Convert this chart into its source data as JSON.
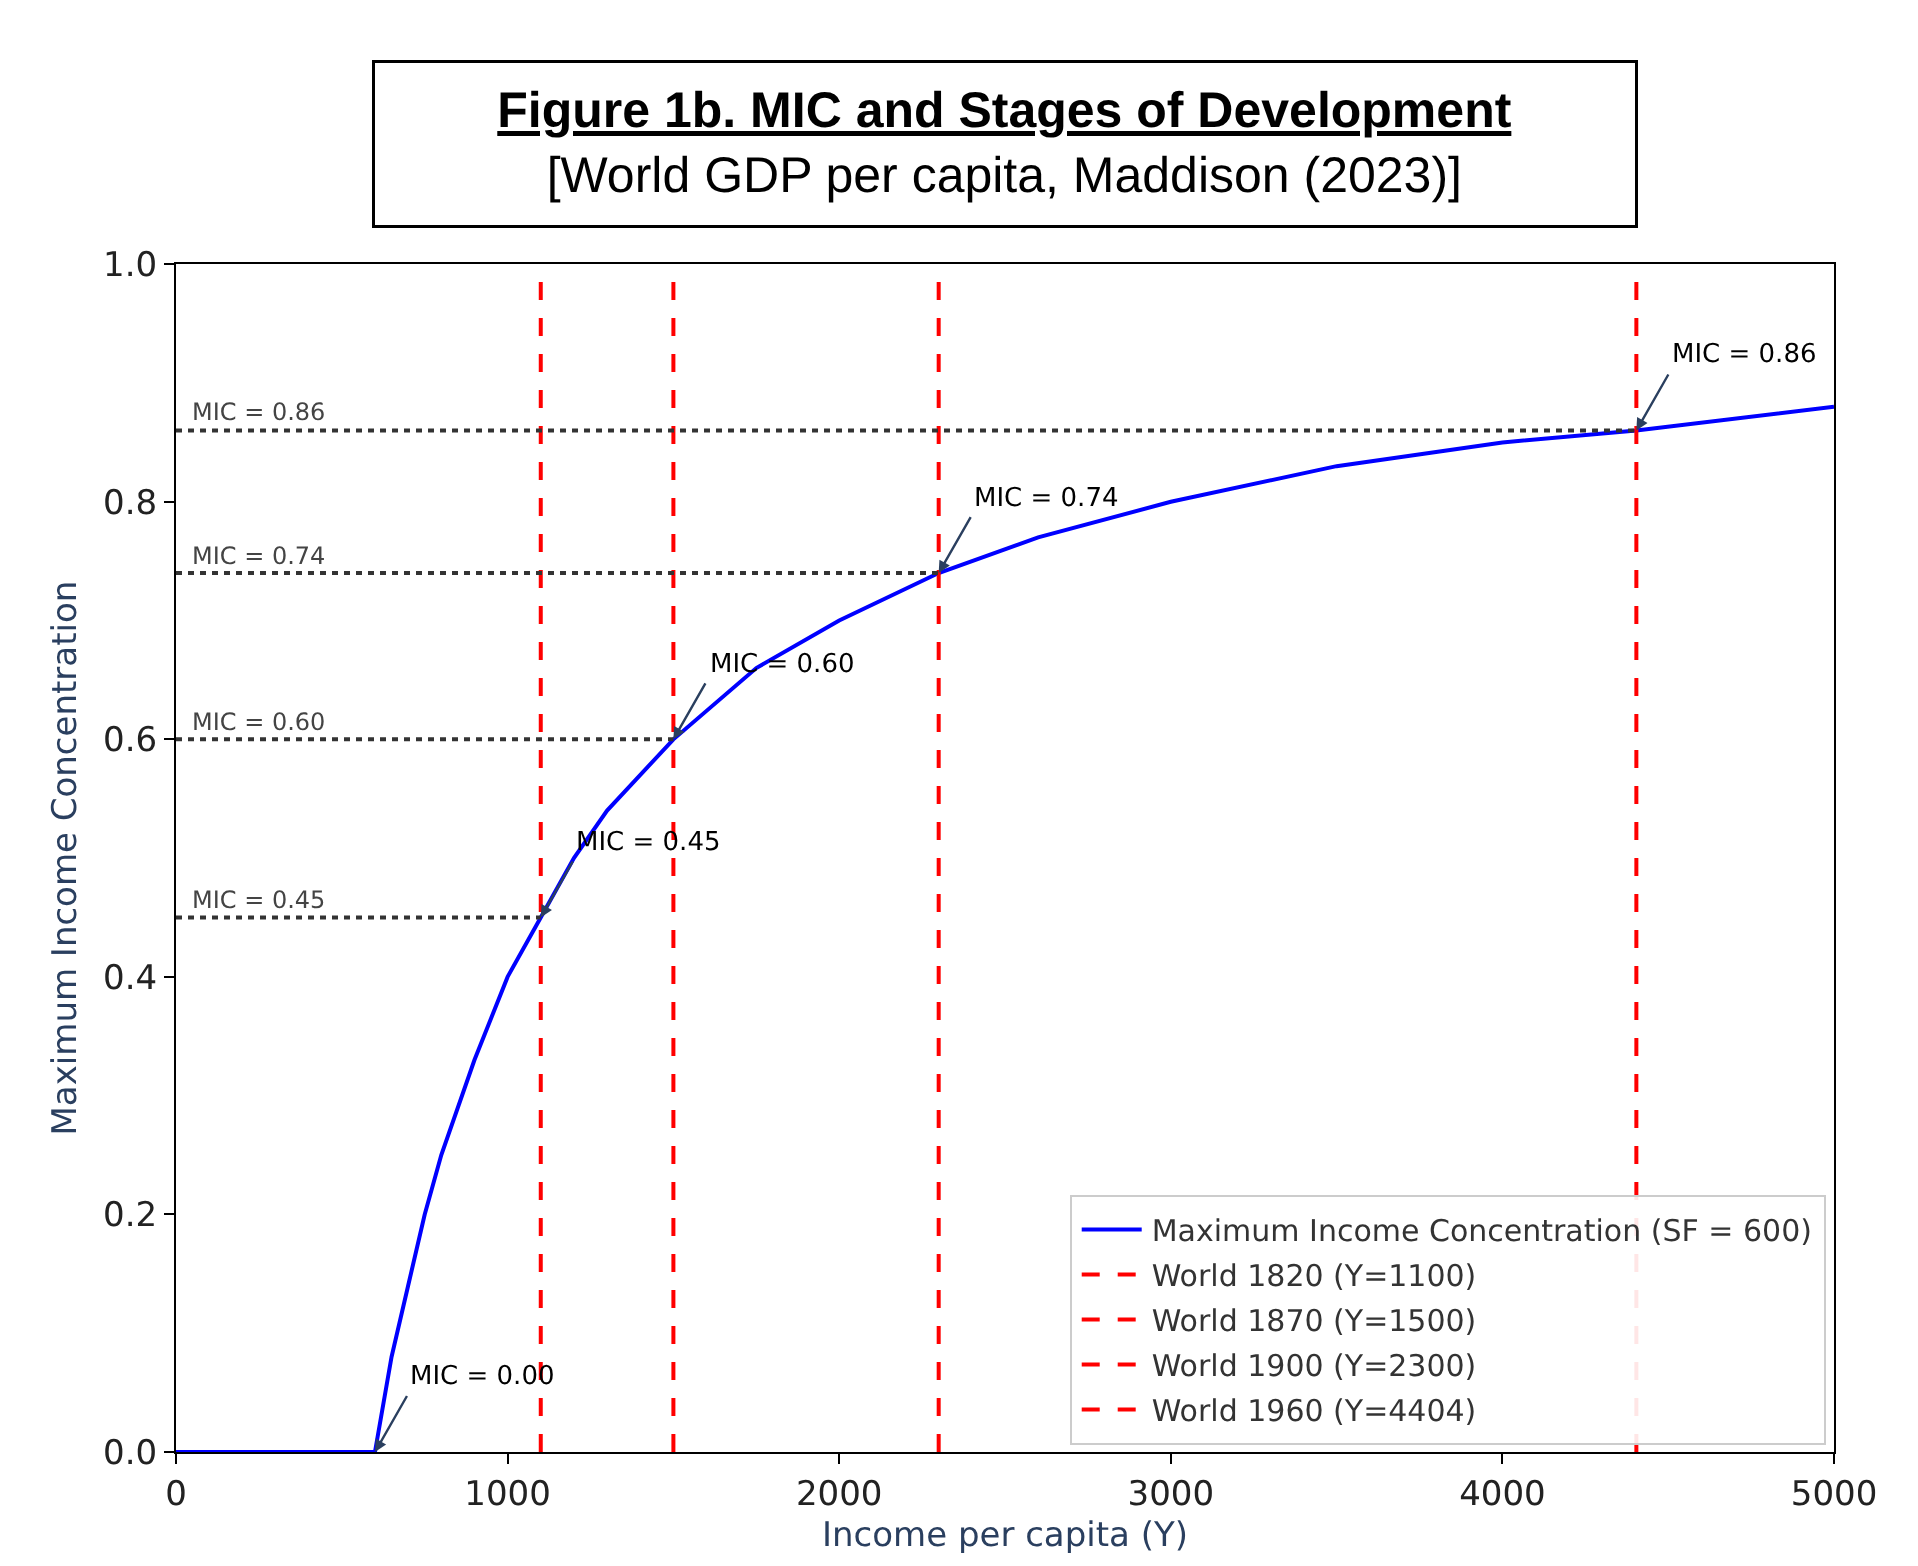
{
  "chart_data": {
    "type": "line",
    "title": "Figure 1b. MIC and Stages of Development",
    "subtitle": "[World GDP per capita, Maddison (2023)]",
    "xlabel": "Income per capita (Y)",
    "ylabel": "Maximum Income Concentration",
    "x": [
      0,
      600,
      650,
      700,
      750,
      800,
      900,
      1000,
      1100,
      1200,
      1300,
      1500,
      1750,
      2000,
      2300,
      2600,
      3000,
      3500,
      4000,
      4404,
      5000
    ],
    "series": [
      {
        "name": "Maximum Income Concentration (SF = 600)",
        "color": "#0000ff",
        "values": [
          0,
          0,
          0.08,
          0.14,
          0.2,
          0.25,
          0.33,
          0.4,
          0.45,
          0.5,
          0.54,
          0.6,
          0.66,
          0.7,
          0.74,
          0.77,
          0.8,
          0.83,
          0.85,
          0.86,
          0.88
        ]
      },
      {
        "name": "World 1820 (Y=1100)",
        "type": "line",
        "x": [
          1100,
          1100
        ],
        "values": [
          0,
          1
        ],
        "color": "#ff0000",
        "line_style": "dashed"
      },
      {
        "name": "World 1870 (Y=1500)",
        "type": "line",
        "x": [
          1500,
          1500
        ],
        "values": [
          0,
          1
        ],
        "color": "#ff0000",
        "line_style": "dashed"
      },
      {
        "name": "World 1900 (Y=2300)",
        "type": "line",
        "x": [
          2300,
          2300
        ],
        "values": [
          0,
          1
        ],
        "color": "#ff0000",
        "line_style": "dashed"
      },
      {
        "name": "World 1960 (Y=4404)",
        "type": "line",
        "x": [
          4404,
          4404
        ],
        "values": [
          0,
          1
        ],
        "color": "#ff0000",
        "line_style": "dashed"
      }
    ],
    "ref_lines": [
      {
        "axis": "y",
        "value": 0.45,
        "label": "MIC = 0.45",
        "color": "#333333",
        "line_style": "dotted"
      },
      {
        "axis": "y",
        "value": 0.6,
        "label": "MIC = 0.60",
        "color": "#333333",
        "line_style": "dotted"
      },
      {
        "axis": "y",
        "value": 0.74,
        "label": "MIC = 0.74",
        "color": "#333333",
        "line_style": "dotted"
      },
      {
        "axis": "y",
        "value": 0.86,
        "label": "MIC = 0.86",
        "color": "#333333",
        "line_style": "dotted"
      }
    ],
    "annotations": [
      {
        "text": "MIC = 0.00",
        "x": 600,
        "y": 0
      },
      {
        "text": "MIC = 0.45",
        "x": 1100,
        "y": 0.45
      },
      {
        "text": "MIC = 0.60",
        "x": 1500,
        "y": 0.6
      },
      {
        "text": "MIC = 0.74",
        "x": 2300,
        "y": 0.74
      },
      {
        "text": "MIC = 0.86",
        "x": 4404,
        "y": 0.86
      }
    ],
    "xlim": [
      0,
      5000
    ],
    "xticks": [
      0,
      1000,
      2000,
      3000,
      4000,
      5000
    ],
    "ylim": [
      0,
      1
    ],
    "yticks": [
      {
        "value": 0,
        "label": "0.0"
      },
      {
        "value": 0.2,
        "label": "0.2"
      },
      {
        "value": 0.4,
        "label": "0.4"
      },
      {
        "value": 0.6,
        "label": "0.6"
      },
      {
        "value": 0.8,
        "label": "0.8"
      },
      {
        "value": 1,
        "label": "1.0"
      }
    ],
    "legend": "bottom right",
    "marker": "none",
    "line_style": "solid"
  }
}
